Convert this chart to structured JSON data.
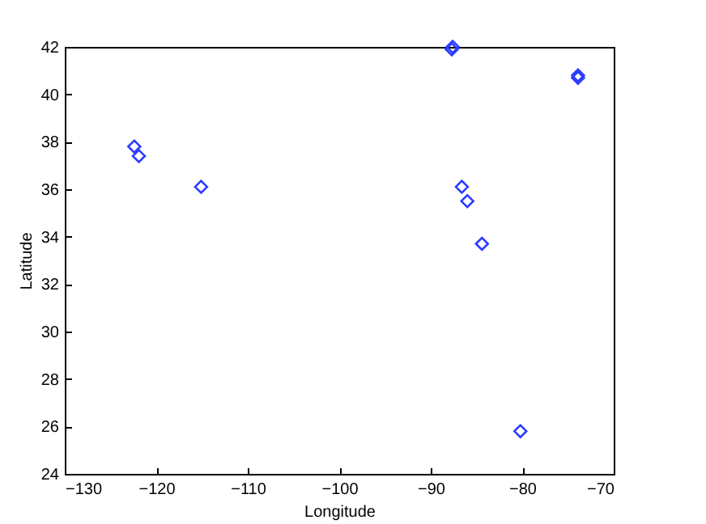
{
  "chart_data": {
    "type": "scatter",
    "xlabel": "Longitude",
    "ylabel": "Latitude",
    "xlim": [
      -130,
      -70
    ],
    "ylim": [
      24,
      42
    ],
    "xticks": [
      -130,
      -120,
      -110,
      -100,
      -90,
      -80,
      -70
    ],
    "yticks": [
      24,
      26,
      28,
      30,
      32,
      34,
      36,
      38,
      40,
      42
    ],
    "grid": false,
    "legend": false,
    "marker": "diamond",
    "series": [
      {
        "color": "#2b3cff",
        "x": [
          -122.4,
          -121.9,
          -115.1,
          -87.7,
          -87.6,
          -73.9,
          -73.9,
          -86.6,
          -86.0,
          -84.4,
          -80.2
        ],
        "values": [
          37.8,
          37.4,
          36.1,
          41.9,
          42.0,
          40.8,
          40.7,
          36.1,
          35.5,
          33.7,
          25.8
        ]
      }
    ]
  }
}
